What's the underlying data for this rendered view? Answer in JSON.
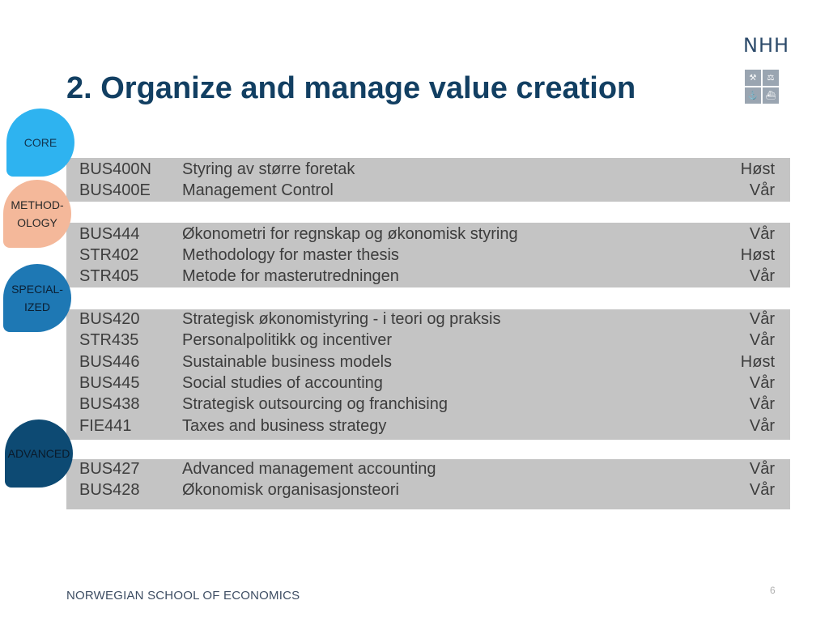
{
  "logo": {
    "text": "NHH",
    "icon_names": [
      "tools-icon",
      "scales-icon",
      "anchor-icon",
      "ship-icon"
    ]
  },
  "title": "2. Organize and manage value creation",
  "colors": {
    "title": "#123f62",
    "band": "#c4c4c4",
    "row_text": "#3d3d3d",
    "core": "#2eb3f0",
    "method": "#f4b89a",
    "special": "#1e78b4",
    "advanced": "#0d4a73"
  },
  "bubbles": [
    {
      "label_1": "CORE",
      "label_2": ""
    },
    {
      "label_1": "METHOD-",
      "label_2": "OLOGY"
    },
    {
      "label_1": "SPECIAL-",
      "label_2": "IZED"
    },
    {
      "label_1": "ADVANCED",
      "label_2": ""
    }
  ],
  "groups": [
    {
      "courses": [
        {
          "code": "BUS400N",
          "name": "Styring av større foretak",
          "term": "Høst"
        },
        {
          "code": "BUS400E",
          "name": "Management Control",
          "term": "Vår"
        }
      ]
    },
    {
      "courses": [
        {
          "code": "BUS444",
          "name": "Økonometri for regnskap og økonomisk styring",
          "term": "Vår"
        },
        {
          "code": "STR402",
          "name": "Methodology for master thesis",
          "term": "Høst"
        },
        {
          "code": "STR405",
          "name": "Metode for masterutredningen",
          "term": "Vår"
        }
      ]
    },
    {
      "courses": [
        {
          "code": "BUS420",
          "name": "Strategisk økonomistyring - i teori og praksis",
          "term": "Vår"
        },
        {
          "code": "STR435",
          "name": "Personalpolitikk og incentiver",
          "term": "Vår"
        },
        {
          "code": "BUS446",
          "name": "Sustainable business models",
          "term": "Høst"
        },
        {
          "code": "BUS445",
          "name": "Social studies of accounting",
          "term": "Vår"
        },
        {
          "code": "BUS438",
          "name": "Strategisk outsourcing og franchising",
          "term": "Vår"
        },
        {
          "code": "FIE441",
          "name": "Taxes and business strategy",
          "term": "Vår"
        }
      ]
    },
    {
      "courses": [
        {
          "code": "BUS427",
          "name": "Advanced management accounting",
          "term": "Vår"
        },
        {
          "code": "BUS428",
          "name": "Økonomisk organisasjonsteori",
          "term": "Vår"
        }
      ]
    }
  ],
  "footer": "NORWEGIAN SCHOOL OF ECONOMICS",
  "page_number": "6"
}
